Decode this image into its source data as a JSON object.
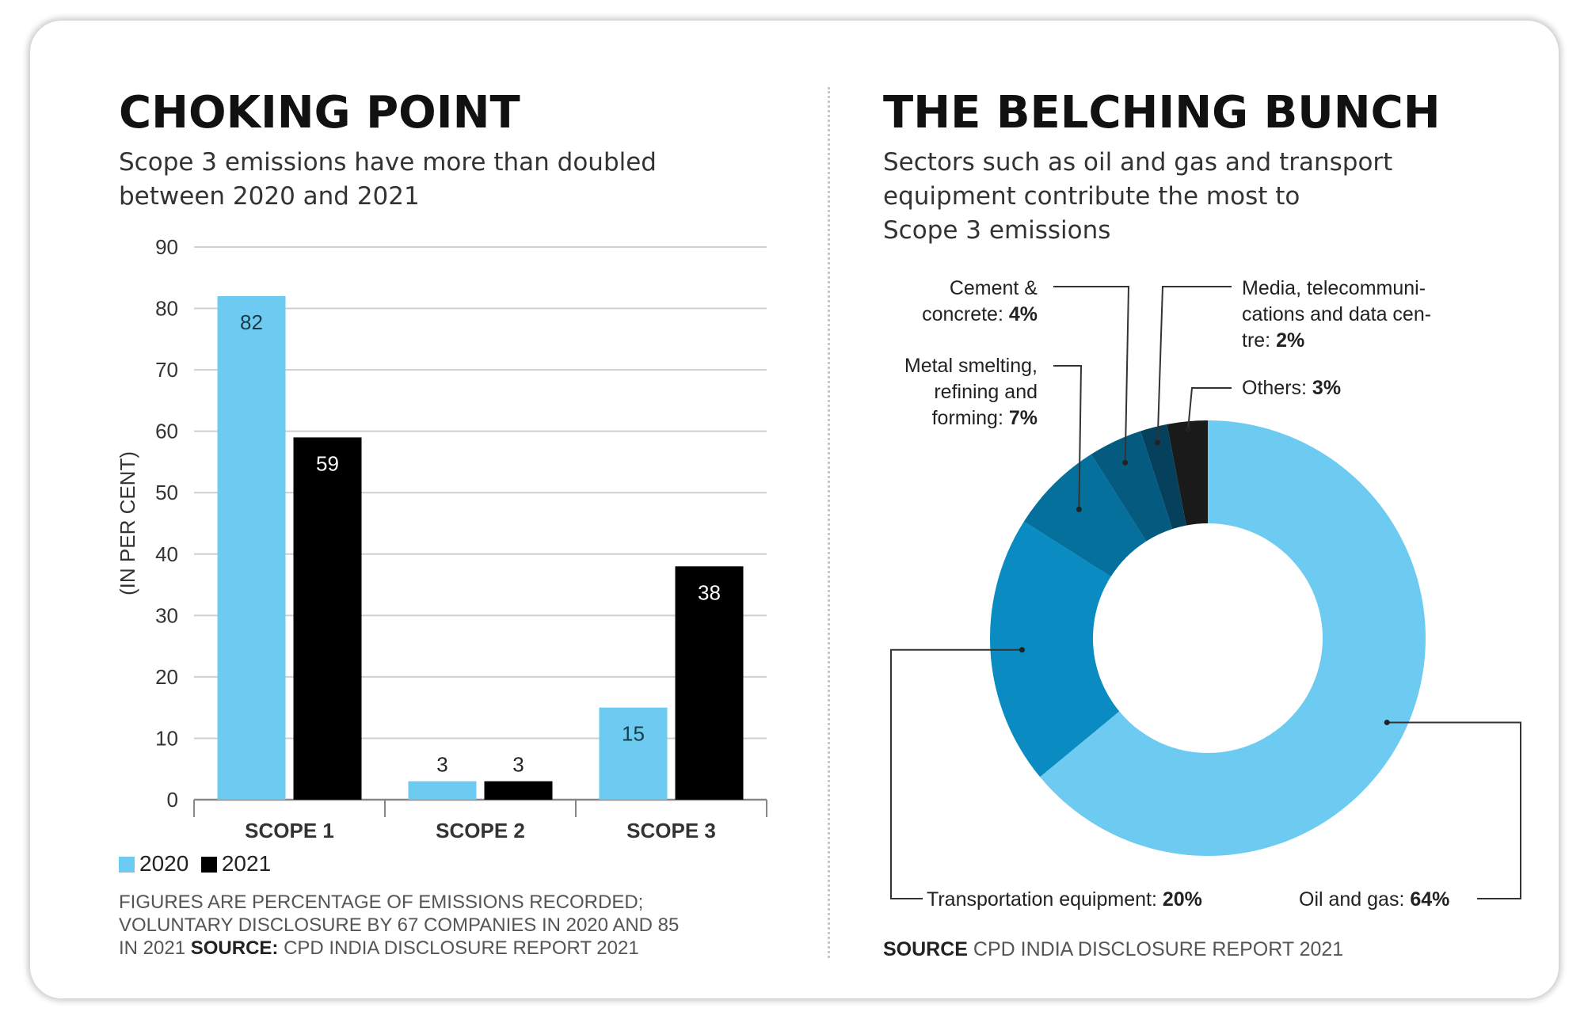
{
  "left": {
    "title": "CHOKING POINT",
    "subtitle_line1": "Scope 3 emissions have more than doubled",
    "subtitle_line2": "between 2020 and 2021",
    "note_line1": "FIGURES ARE PERCENTAGE OF EMISSIONS RECORDED;",
    "note_line2": "VOLUNTARY DISCLOSURE BY 67 COMPANIES IN 2020 AND 85",
    "note_line3_prefix": "IN 2021 ",
    "note_source_label": "SOURCE:",
    "note_source_text": " CPD INDIA DISCLOSURE REPORT 2021"
  },
  "right": {
    "title": "THE BELCHING BUNCH",
    "subtitle_line1": "Sectors such as oil and gas and transport",
    "subtitle_line2": "equipment contribute the most to",
    "subtitle_line3": "Scope 3 emissions",
    "source_label": "SOURCE",
    "source_text": " CPD INDIA DISCLOSURE REPORT 2021"
  },
  "colors": {
    "c2020": "#6dcbf1",
    "c2021": "#000000",
    "grid": "#cfcfcf",
    "oil": "#6dcbf1",
    "transport": "#0a8cc3",
    "metal": "#06709c",
    "cement": "#055a80",
    "media": "#05405d",
    "others": "#1a1a1a"
  },
  "chart_data": [
    {
      "type": "bar",
      "title": "CHOKING POINT",
      "ylabel": "(IN PER CENT)",
      "ylim": [
        0,
        90
      ],
      "yticks": [
        0,
        10,
        20,
        30,
        40,
        50,
        60,
        70,
        80,
        90
      ],
      "categories": [
        "SCOPE 1",
        "SCOPE 2",
        "SCOPE 3"
      ],
      "series": [
        {
          "name": "2020",
          "values": [
            82,
            3,
            15
          ]
        },
        {
          "name": "2021",
          "values": [
            59,
            3,
            38
          ]
        }
      ],
      "legend": "bottom-left"
    },
    {
      "type": "pie",
      "title": "THE BELCHING BUNCH",
      "slices": [
        {
          "key": "oil",
          "label": "Oil and gas:",
          "pct_text": "64%",
          "value": 64
        },
        {
          "key": "transport",
          "label": "Transportation equipment:",
          "pct_text": "20%",
          "value": 20
        },
        {
          "key": "metal",
          "label_lines": [
            "Metal smelting,",
            "refining and",
            "forming: "
          ],
          "pct_text": "7%",
          "value": 7
        },
        {
          "key": "cement",
          "label_lines": [
            "Cement &",
            "concrete: "
          ],
          "pct_text": "4%",
          "value": 4
        },
        {
          "key": "media",
          "label_lines": [
            "Media, telecommuni-",
            "cations and data cen-",
            "tre: "
          ],
          "pct_text": "2%",
          "value": 2
        },
        {
          "key": "others",
          "label": "Others:",
          "pct_text": "3%",
          "value": 3
        }
      ]
    }
  ]
}
